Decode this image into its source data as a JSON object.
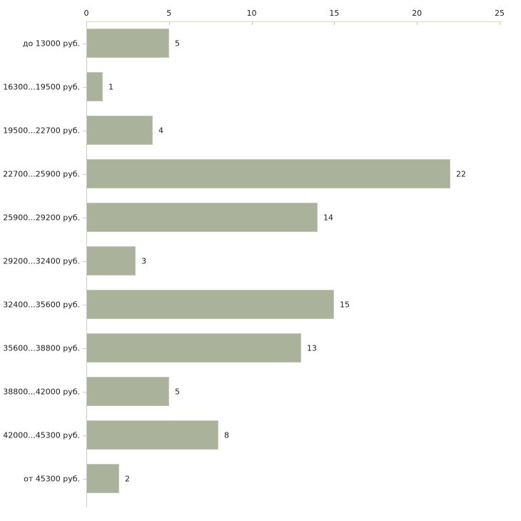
{
  "chart_data": {
    "type": "bar",
    "orientation": "horizontal",
    "title": "",
    "xlabel": "",
    "ylabel": "",
    "categories": [
      "до 13000 руб.",
      "16300...19500 руб.",
      "19500...22700 руб.",
      "22700...25900 руб.",
      "25900...29200 руб.",
      "29200...32400 руб.",
      "32400...35600 руб.",
      "35600...38800 руб.",
      "38800...42000 руб.",
      "42000...45300 руб.",
      "от 45300 руб."
    ],
    "values": [
      5,
      1,
      4,
      22,
      14,
      3,
      15,
      13,
      5,
      8,
      2
    ],
    "x_ticks": [
      "0",
      "5",
      "10",
      "15",
      "20",
      "25"
    ],
    "xlim": [
      0,
      25
    ],
    "grid": false,
    "legend": false,
    "value_labels": true,
    "colors": {
      "bar_fill": "#abb29b",
      "bar_border": "#c3c8b6",
      "x_axis_line": "#d9dac5",
      "x_tick_mark": "#c8c9ad",
      "y_axis_line": "#cbcccb",
      "category_tick": "#cfcfc0",
      "text": "#1c1c1c",
      "background": "#ffffff"
    }
  }
}
